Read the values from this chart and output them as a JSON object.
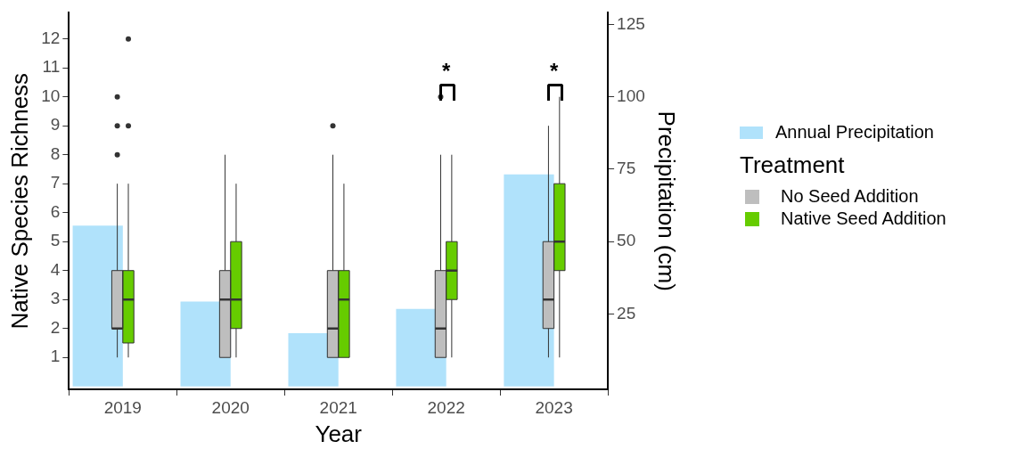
{
  "chart_data": {
    "type": "box",
    "xlabel": "Year",
    "ylabel": "Native Species Richness",
    "y2label": "Precipitation (cm)",
    "legend_title": "Treatment",
    "legend": "right",
    "categories": [
      "2019",
      "2020",
      "2021",
      "2022",
      "2023"
    ],
    "ylim": [
      -0.1,
      12.9
    ],
    "yticks": [
      1,
      2,
      3,
      4,
      5,
      6,
      7,
      8,
      9,
      10,
      11,
      12
    ],
    "y2lim": [
      -1,
      129
    ],
    "y2ticks": [
      25,
      50,
      75,
      100,
      125
    ],
    "series": [
      {
        "name": "Annual Precipitation",
        "type": "bar",
        "axis": "y2",
        "color": "#b0e2fb",
        "values": [
          55.5,
          29.3,
          18.4,
          26.8,
          73.2
        ]
      },
      {
        "name": "No Seed Addition",
        "color": "#bebebe",
        "boxes": [
          {
            "low": 1,
            "q1": 2,
            "median": 2,
            "q3": 4,
            "high": 7,
            "outliers": [
              8,
              9,
              10
            ]
          },
          {
            "low": 1,
            "q1": 1,
            "median": 3,
            "q3": 4,
            "high": 8
          },
          {
            "low": 1,
            "q1": 1,
            "median": 2,
            "q3": 4,
            "high": 8,
            "outliers": [
              9
            ]
          },
          {
            "low": 1,
            "q1": 1,
            "median": 2,
            "q3": 4,
            "high": 8,
            "outliers": [
              10
            ]
          },
          {
            "low": 1,
            "q1": 2,
            "median": 3,
            "q3": 5,
            "high": 9
          }
        ]
      },
      {
        "name": "Native Seed Addition",
        "color": "#66cc00",
        "boxes": [
          {
            "low": 1,
            "q1": 1.5,
            "median": 3,
            "q3": 4,
            "high": 7,
            "outliers": [
              9,
              12
            ]
          },
          {
            "low": 1,
            "q1": 2,
            "median": 3,
            "q3": 5,
            "high": 7
          },
          {
            "low": 1,
            "q1": 1,
            "median": 3,
            "q3": 4,
            "high": 7
          },
          {
            "low": 1,
            "q1": 3,
            "median": 4,
            "q3": 5,
            "high": 8
          },
          {
            "low": 1,
            "q1": 4,
            "median": 5,
            "q3": 7,
            "high": 10
          }
        ]
      }
    ],
    "annotations": [
      "*",
      "*"
    ]
  }
}
